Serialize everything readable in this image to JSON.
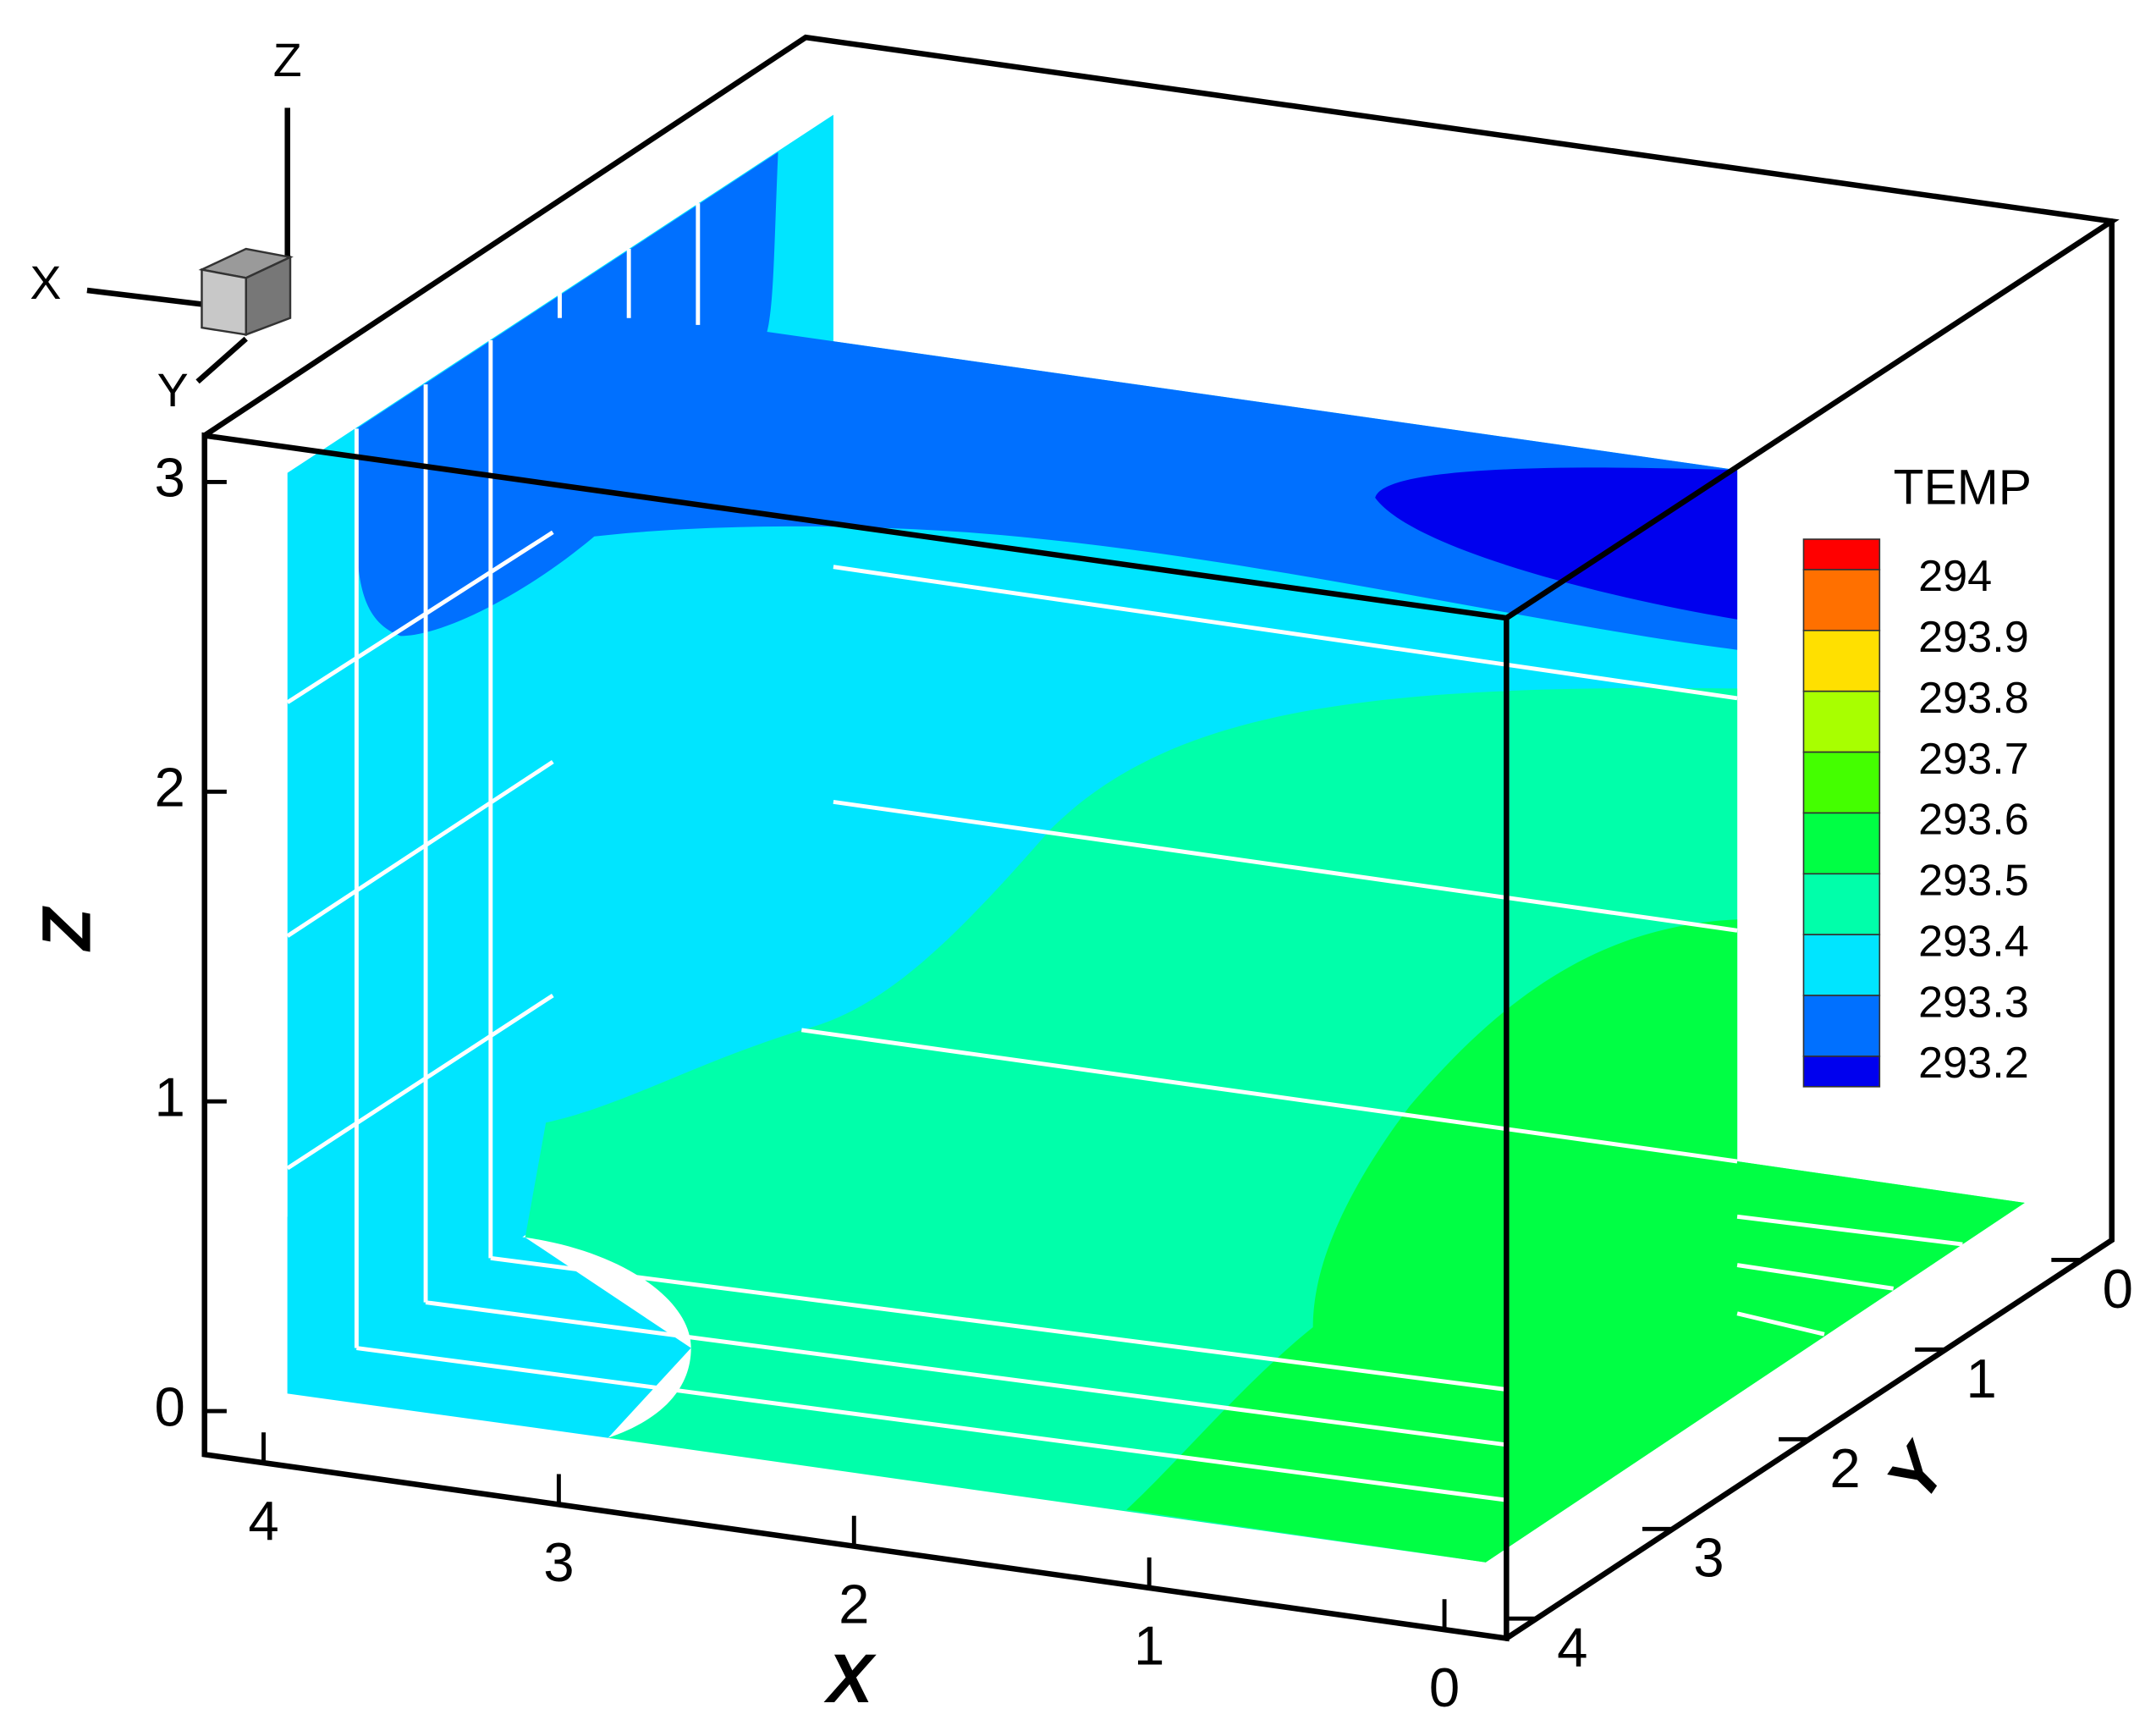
{
  "chart_data": {
    "type": "contour3d",
    "xlabel": "X",
    "ylabel": "Y",
    "zlabel": "Z",
    "xlim": [
      4.2,
      -0.21
    ],
    "xticks": [
      0,
      1,
      2,
      3,
      4
    ],
    "ylim": [
      4.22,
      -0.22
    ],
    "yticks": [
      0,
      1,
      2,
      3,
      4
    ],
    "zlim": [
      -0.14,
      3.15
    ],
    "zticks": [
      0,
      1,
      2,
      3
    ],
    "legend": {
      "title": "TEMP",
      "levels": [
        294,
        293.9,
        293.8,
        293.7,
        293.6,
        293.5,
        293.4,
        293.3,
        293.2
      ],
      "colors": [
        "#ff0000",
        "#ff7000",
        "#ffe000",
        "#a8ff00",
        "#44ff00",
        "#00ff44",
        "#00ffaa",
        "#00e5ff",
        "#0070ff",
        "#0000ee"
      ],
      "position": "right"
    },
    "orientation": {
      "x": "X",
      "y": "Y",
      "z": "Z"
    }
  }
}
